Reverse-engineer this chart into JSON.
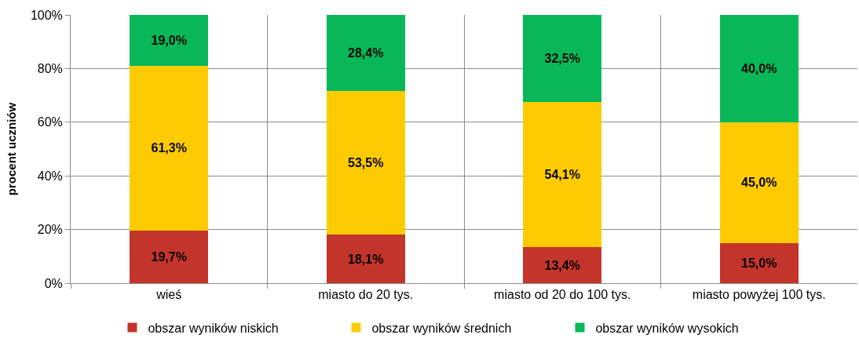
{
  "chart_data": {
    "type": "bar",
    "stacked": true,
    "ylabel": "procent uczniów",
    "categories": [
      "wieś",
      "miasto do 20 tys.",
      "miasto od 20 do 100 tys.",
      "miasto powyżej 100 tys."
    ],
    "series": [
      {
        "name": "obszar wyników niskich",
        "color": "#c3352a",
        "values": [
          19.7,
          18.1,
          13.4,
          15.0
        ],
        "value_labels": [
          "19,7%",
          "18,1%",
          "13,4%",
          "15,0%"
        ]
      },
      {
        "name": "obszar wyników średnich",
        "color": "#fecb00",
        "values": [
          61.3,
          53.5,
          54.1,
          45.0
        ],
        "value_labels": [
          "61,3%",
          "53,5%",
          "54,1%",
          "45,0%"
        ]
      },
      {
        "name": "obszar wyników wysokich",
        "color": "#08b858",
        "values": [
          19.0,
          28.4,
          32.5,
          40.0
        ],
        "value_labels": [
          "19,0%",
          "28,4%",
          "32,5%",
          "40,0%"
        ]
      }
    ],
    "ylim": [
      0,
      100
    ],
    "yticks": [
      {
        "value": 0,
        "label": "0%"
      },
      {
        "value": 20,
        "label": "20%"
      },
      {
        "value": 40,
        "label": "40%"
      },
      {
        "value": 60,
        "label": "60%"
      },
      {
        "value": 80,
        "label": "80%"
      },
      {
        "value": 100,
        "label": "100%"
      }
    ],
    "grid": true,
    "legend": "bottom"
  }
}
